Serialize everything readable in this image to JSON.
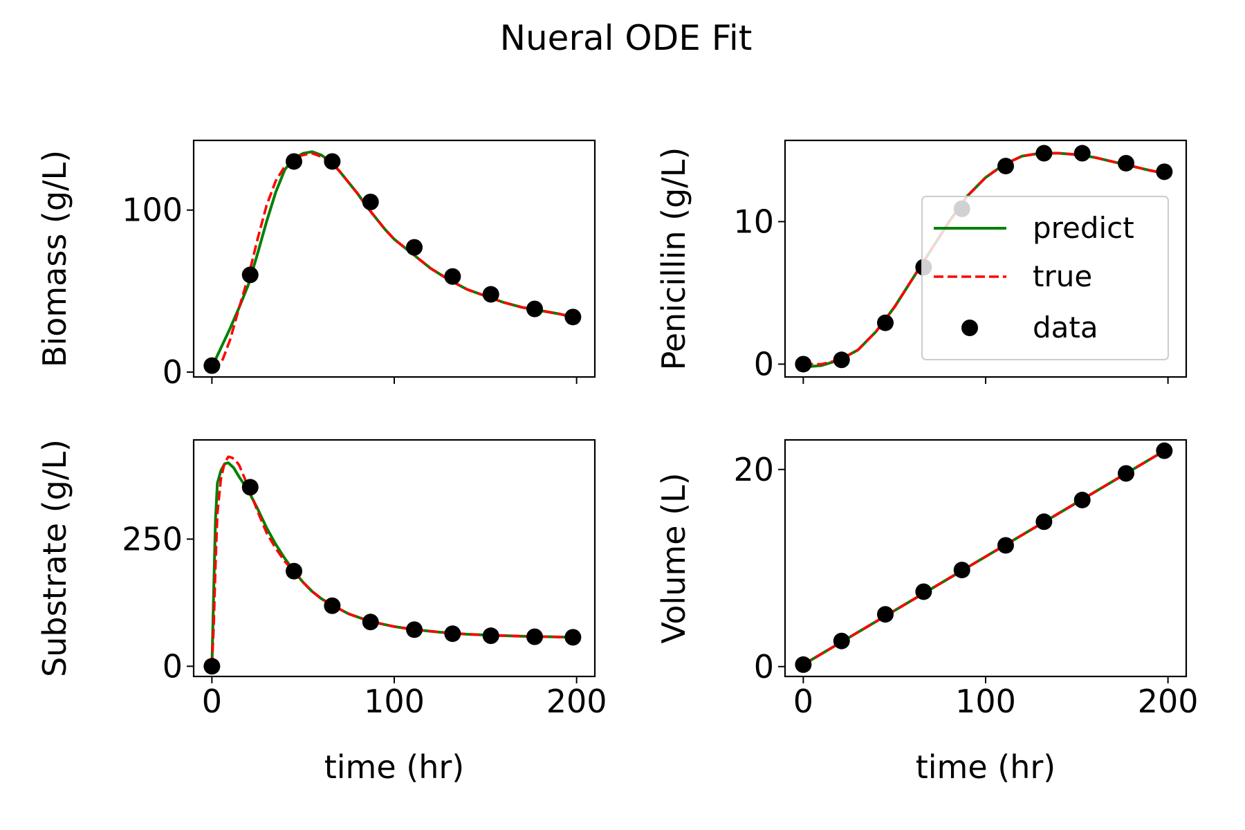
{
  "figure": {
    "title": "Nueral ODE Fit"
  },
  "legend": {
    "placement": "upper-right of top-right panel",
    "entries": [
      {
        "label": "predict",
        "color": "#008000",
        "style": "solid"
      },
      {
        "label": "true",
        "color": "#ff0000",
        "style": "dashed"
      },
      {
        "label": "data",
        "color": "#000000",
        "style": "marker"
      }
    ]
  },
  "colors": {
    "predict": "#008000",
    "true": "#ff0000",
    "data": "#000000"
  },
  "chart_data": [
    {
      "type": "line",
      "ylabel": "Biomass (g/L)",
      "xlabel": "",
      "xlim": [
        -10,
        210
      ],
      "ylim": [
        -3,
        143
      ],
      "xticks": [
        0,
        100,
        200
      ],
      "yticks": [
        0,
        100
      ],
      "show_x_ticklabels": false,
      "series": [
        {
          "name": "predict",
          "x": [
            0,
            5,
            10,
            15,
            20,
            25,
            30,
            35,
            40,
            45,
            50,
            55,
            60,
            65,
            70,
            75,
            80,
            85,
            90,
            95,
            100,
            110,
            120,
            130,
            140,
            150,
            160,
            170,
            180,
            190,
            198
          ],
          "y": [
            3,
            15,
            27,
            40,
            54,
            73,
            93,
            111,
            125,
            132,
            135,
            136,
            134,
            130,
            124,
            117,
            110,
            102,
            95,
            88,
            82,
            73,
            64,
            57,
            51,
            47,
            43,
            40,
            38,
            36,
            34
          ]
        },
        {
          "name": "true",
          "x": [
            0,
            3,
            6,
            10,
            15,
            20,
            25,
            30,
            35,
            40,
            45,
            50,
            55,
            60,
            65,
            70,
            75,
            80,
            85,
            90,
            95,
            100,
            110,
            120,
            130,
            140,
            150,
            160,
            170,
            180,
            190,
            198
          ],
          "y": [
            2,
            3,
            8,
            20,
            40,
            59,
            82,
            103,
            118,
            127,
            132,
            134,
            135,
            133,
            130,
            124,
            117,
            110,
            102,
            95,
            88,
            82,
            73,
            64,
            57,
            51,
            47,
            43,
            40,
            38,
            36,
            34
          ]
        },
        {
          "name": "data",
          "x": [
            0,
            21,
            45,
            66,
            87,
            111,
            132,
            153,
            177,
            198
          ],
          "y": [
            4,
            60,
            130,
            130,
            105,
            77,
            59,
            48,
            39,
            34
          ]
        }
      ]
    },
    {
      "type": "line",
      "ylabel": "Penicillin (g/L)",
      "xlabel": "",
      "xlim": [
        -10,
        210
      ],
      "ylim": [
        -0.9,
        15.7
      ],
      "xticks": [
        0,
        100,
        200
      ],
      "yticks": [
        0,
        10
      ],
      "show_x_ticklabels": false,
      "series": [
        {
          "name": "predict",
          "x": [
            0,
            10,
            20,
            30,
            40,
            50,
            60,
            70,
            80,
            90,
            100,
            110,
            120,
            130,
            140,
            150,
            160,
            170,
            180,
            190,
            198
          ],
          "y": [
            -0.2,
            -0.1,
            0.3,
            1.0,
            2.3,
            4.0,
            6.0,
            8.0,
            10.0,
            11.8,
            13.1,
            14.0,
            14.6,
            14.8,
            14.8,
            14.7,
            14.5,
            14.2,
            13.9,
            13.6,
            13.4
          ]
        },
        {
          "name": "true",
          "x": [
            0,
            10,
            20,
            30,
            40,
            50,
            60,
            70,
            80,
            90,
            100,
            110,
            120,
            130,
            140,
            150,
            160,
            170,
            180,
            190,
            198
          ],
          "y": [
            0.0,
            0.0,
            0.3,
            1.0,
            2.3,
            4.0,
            6.0,
            8.0,
            10.0,
            11.8,
            13.1,
            14.0,
            14.6,
            14.8,
            14.8,
            14.7,
            14.5,
            14.2,
            13.9,
            13.6,
            13.4
          ]
        },
        {
          "name": "data",
          "x": [
            0,
            21,
            45,
            66,
            87,
            111,
            132,
            153,
            177,
            198
          ],
          "y": [
            0.0,
            0.3,
            2.9,
            6.8,
            10.9,
            13.9,
            14.8,
            14.8,
            14.1,
            13.5
          ]
        }
      ]
    },
    {
      "type": "line",
      "ylabel": "Substrate (g/L)",
      "xlabel": "time (hr)",
      "xlim": [
        -10,
        210
      ],
      "ylim": [
        -20,
        445
      ],
      "xticks": [
        0,
        100,
        200
      ],
      "yticks": [
        0,
        250
      ],
      "show_x_ticklabels": true,
      "series": [
        {
          "name": "predict",
          "x": [
            0,
            1,
            2,
            3,
            5,
            7,
            9,
            12,
            15,
            20,
            25,
            30,
            35,
            40,
            45,
            50,
            55,
            60,
            66,
            75,
            87,
            100,
            111,
            125,
            140,
            153,
            170,
            185,
            198
          ],
          "y": [
            0,
            150,
            290,
            360,
            385,
            398,
            400,
            390,
            372,
            345,
            310,
            272,
            240,
            212,
            187,
            165,
            147,
            133,
            120,
            103,
            88,
            78,
            72,
            67,
            63,
            61,
            59,
            58,
            57
          ]
        },
        {
          "name": "true",
          "x": [
            0,
            1,
            2,
            3,
            5,
            7,
            9,
            11,
            13,
            15,
            20,
            25,
            30,
            35,
            40,
            45,
            50,
            55,
            60,
            66,
            75,
            87,
            100,
            111,
            125,
            140,
            153,
            170,
            185,
            198
          ],
          "y": [
            0,
            80,
            200,
            300,
            370,
            400,
            412,
            410,
            405,
            395,
            352,
            305,
            262,
            232,
            206,
            187,
            165,
            147,
            133,
            120,
            103,
            88,
            78,
            72,
            67,
            63,
            61,
            59,
            58,
            57
          ]
        },
        {
          "name": "data",
          "x": [
            0,
            21,
            45,
            66,
            87,
            111,
            132,
            153,
            177,
            198
          ],
          "y": [
            0,
            352,
            187,
            119,
            87,
            72,
            64,
            60,
            58,
            57
          ]
        }
      ]
    },
    {
      "type": "line",
      "ylabel": "Volume (L)",
      "xlabel": "time (hr)",
      "xlim": [
        -10,
        210
      ],
      "ylim": [
        -1,
        23
      ],
      "xticks": [
        0,
        100,
        200
      ],
      "yticks": [
        0,
        20
      ],
      "show_x_ticklabels": true,
      "series": [
        {
          "name": "predict",
          "x": [
            0,
            198
          ],
          "y": [
            0.2,
            21.9
          ]
        },
        {
          "name": "true",
          "x": [
            0,
            198
          ],
          "y": [
            0.2,
            21.9
          ]
        },
        {
          "name": "data",
          "x": [
            0,
            21,
            45,
            66,
            87,
            111,
            132,
            153,
            177,
            198
          ],
          "y": [
            0.2,
            2.6,
            5.3,
            7.6,
            9.8,
            12.3,
            14.7,
            16.9,
            19.6,
            21.9
          ]
        }
      ]
    }
  ]
}
